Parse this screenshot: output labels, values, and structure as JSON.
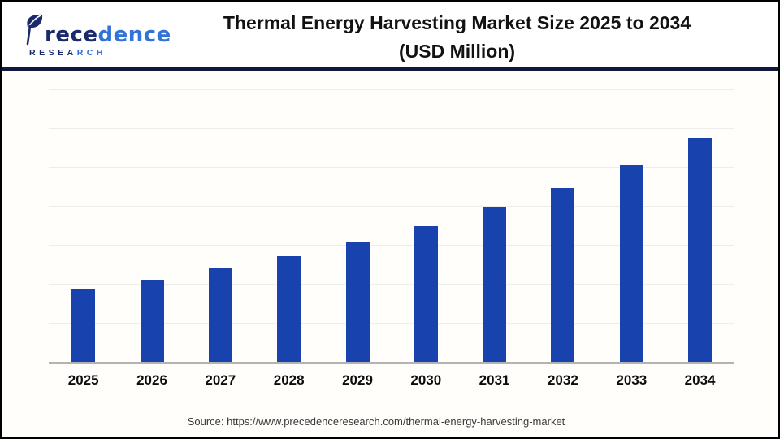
{
  "logo": {
    "name": "Precedence Research",
    "brand_navy": "rece",
    "brand_blue": "dence",
    "sub_navy": "RESEA",
    "sub_blue": "RCH",
    "navy_color": "#1b2a6b",
    "blue_color": "#3273d8"
  },
  "header": {
    "title_line1": "Thermal Energy Harvesting Market Size 2025 to 2034",
    "title_line2": "(USD Million)"
  },
  "footer": {
    "source": "Source: https://www.precedenceresearch.com/thermal-energy-harvesting-market"
  },
  "chart_data": {
    "type": "bar",
    "title": "Thermal Energy Harvesting Market Size 2025 to 2034 (USD Million)",
    "categories": [
      "2025",
      "2026",
      "2027",
      "2028",
      "2029",
      "2030",
      "2031",
      "2032",
      "2033",
      "2034"
    ],
    "values": [
      26.5,
      29.9,
      34.2,
      38.8,
      44.0,
      49.9,
      56.7,
      63.9,
      72.4,
      82.2
    ],
    "values_unit": "percent of plot height (y axis has no tick labels)",
    "values_relative_to_2025": [
      1.0,
      1.13,
      1.29,
      1.46,
      1.66,
      1.88,
      2.14,
      2.41,
      2.73,
      3.1
    ],
    "xlabel": "",
    "ylabel": "",
    "y_axis_tick_labels": "none",
    "gridline_count": 7,
    "grid": "horizontal",
    "legend": "none",
    "bar_color": "#1843af",
    "axis_line_color": "#b3b3b3",
    "gridline_color": "#ededed"
  }
}
